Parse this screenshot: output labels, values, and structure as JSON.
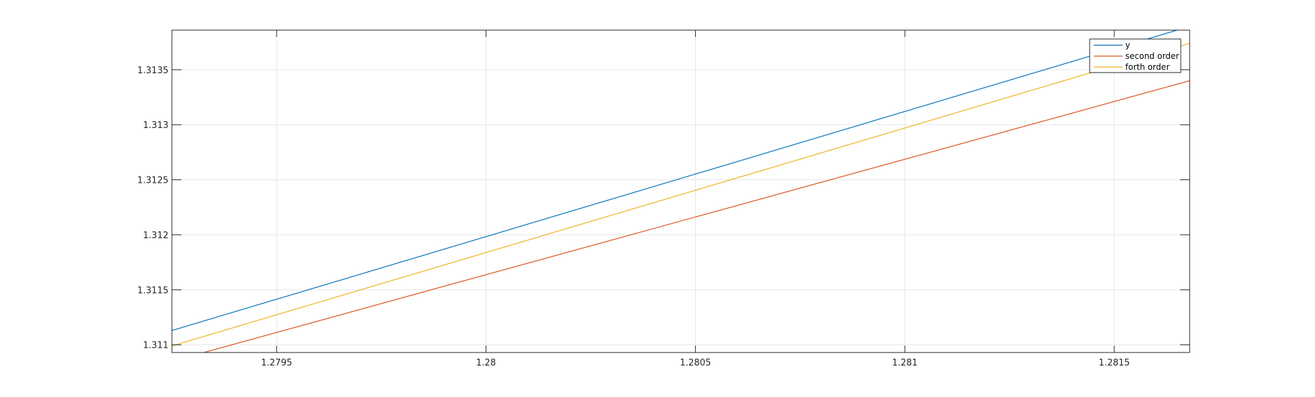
{
  "chart_data": {
    "type": "line",
    "title": "",
    "xlabel": "",
    "ylabel": "",
    "xlim": [
      1.27925,
      1.28168
    ],
    "ylim": [
      1.31093,
      1.31386
    ],
    "grid": true,
    "legend_placement": "top-right",
    "x_ticks": [
      1.2795,
      1.28,
      1.2805,
      1.281,
      1.2815
    ],
    "x_tick_labels": [
      "1.2795",
      "1.28",
      "1.2805",
      "1.281",
      "1.2815"
    ],
    "y_ticks": [
      1.311,
      1.3115,
      1.312,
      1.3125,
      1.313,
      1.3135
    ],
    "y_tick_labels": [
      "1.311",
      "1.3115",
      "1.312",
      "1.3125",
      "1.313",
      "1.3135"
    ],
    "series": [
      {
        "name": "y",
        "color": "#0072BD",
        "x": [
          1.27925,
          1.28165
        ],
        "y": [
          1.31113,
          1.31386
        ]
      },
      {
        "name": "second order",
        "color": "#D95319",
        "x": [
          1.27925,
          1.28168
        ],
        "y": [
          1.31085,
          1.3134
        ]
      },
      {
        "name": "forth order",
        "color": "#EDB120",
        "x": [
          1.27925,
          1.28168
        ],
        "y": [
          1.31099,
          1.31374
        ]
      }
    ]
  }
}
